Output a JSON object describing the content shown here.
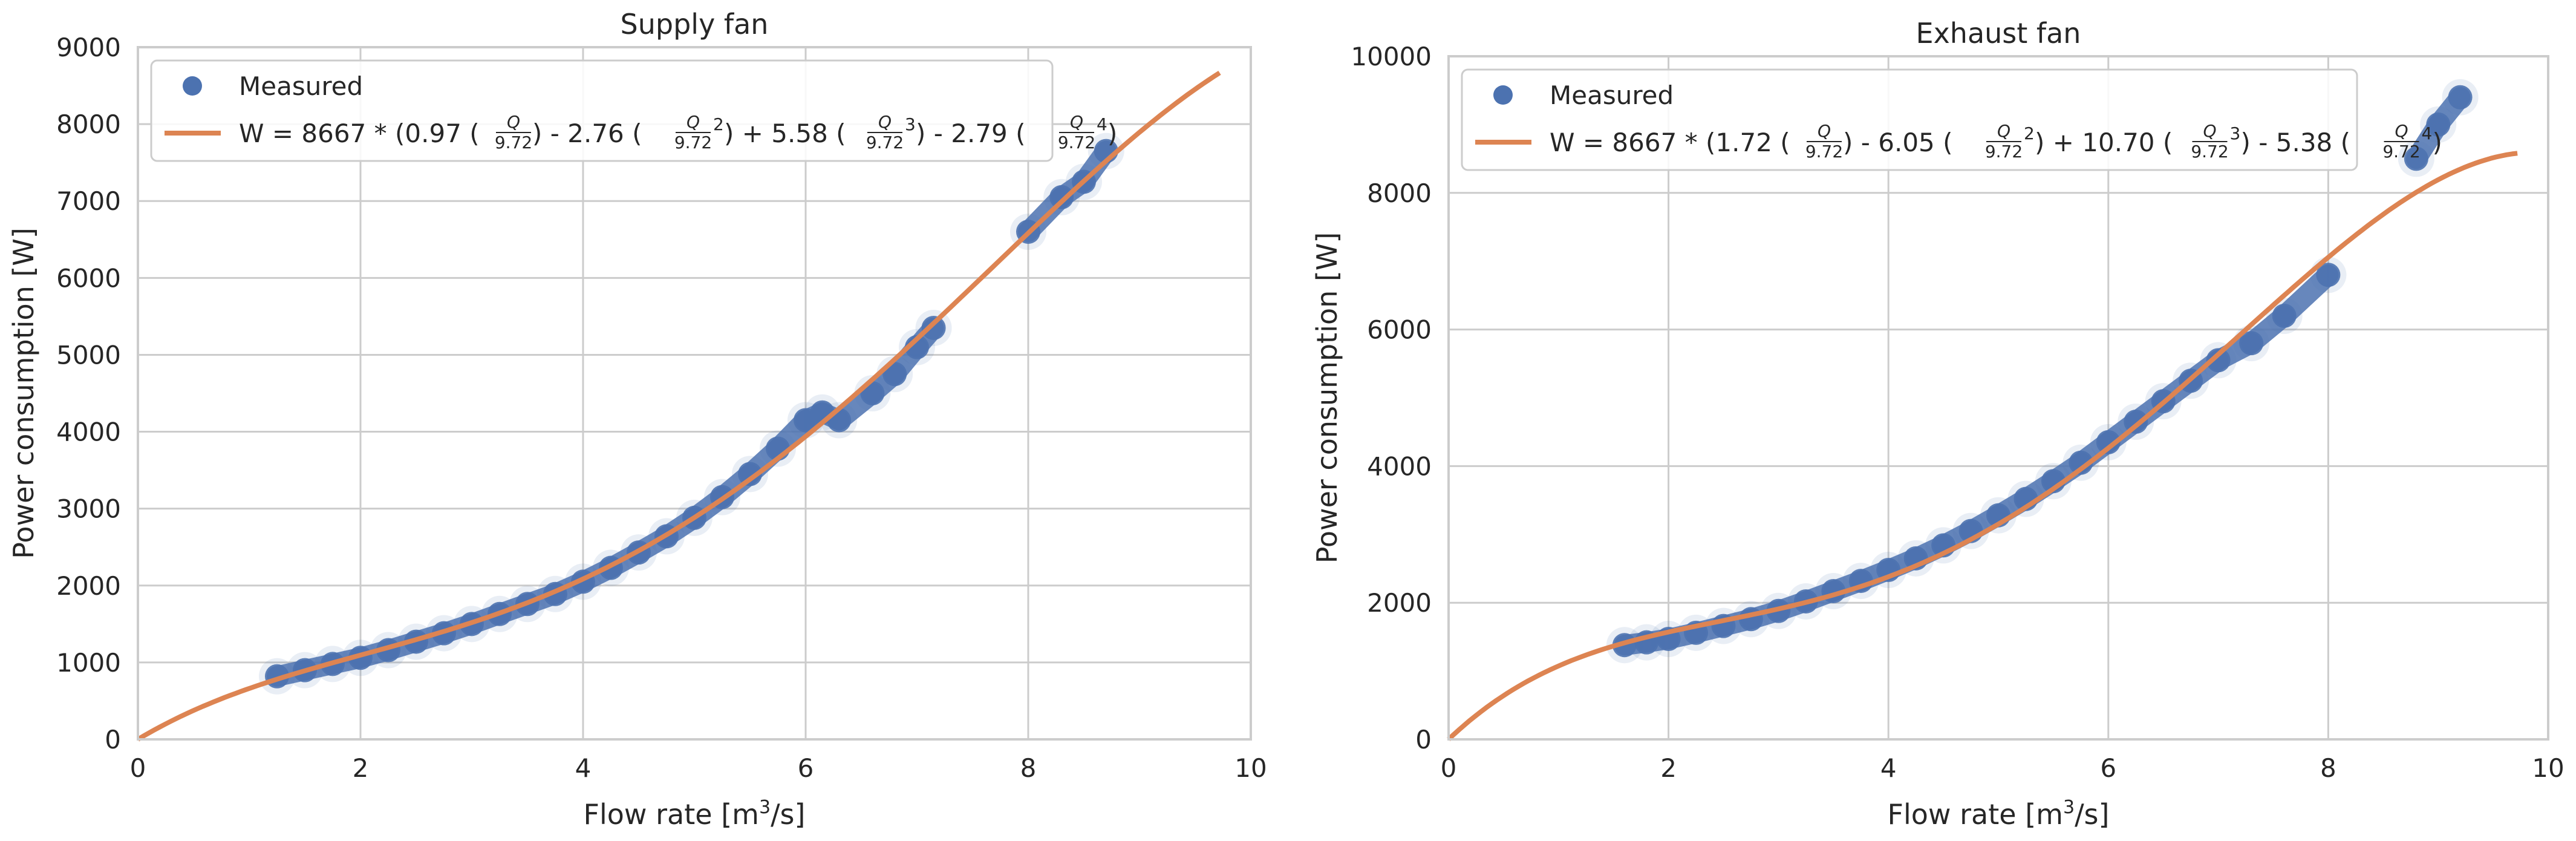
{
  "chart_data": [
    {
      "type": "scatter",
      "title": "Supply fan",
      "xlabel": "Flow rate [m³/s]",
      "xlabel_base": "Flow rate [m",
      "xlabel_sup": "3",
      "xlabel_tail": "/s]",
      "ylabel": "Power consumption [W]",
      "xlim": [
        0,
        10
      ],
      "ylim": [
        0,
        9000
      ],
      "xticks": [
        0,
        2,
        4,
        6,
        8,
        10
      ],
      "yticks": [
        0,
        1000,
        2000,
        3000,
        4000,
        5000,
        6000,
        7000,
        8000,
        9000
      ],
      "grid": true,
      "legend_position": "top-left",
      "series": [
        {
          "name": "Measured",
          "kind": "scatter",
          "color": "#4C72B0",
          "x": [
            1.25,
            1.5,
            1.75,
            2.0,
            2.25,
            2.5,
            2.75,
            3.0,
            3.25,
            3.5,
            3.75,
            4.0,
            4.25,
            4.5,
            4.75,
            5.0,
            5.25,
            5.5,
            5.75,
            6.0,
            6.15,
            6.3,
            6.6,
            6.8,
            7.0,
            7.15,
            8.0,
            8.3,
            8.5,
            8.7
          ],
          "y": [
            820,
            900,
            980,
            1060,
            1160,
            1270,
            1380,
            1500,
            1630,
            1760,
            1890,
            2050,
            2230,
            2430,
            2640,
            2880,
            3150,
            3450,
            3780,
            4150,
            4250,
            4150,
            4500,
            4750,
            5100,
            5350,
            6600,
            7050,
            7250,
            7650
          ]
        },
        {
          "name": "W = 8667 * (0.97 (Q/9.72) - 2.76 (Q/9.72)^2 + 5.58 (Q/9.72)^3 - 2.79 (Q/9.72)^4)",
          "kind": "fit",
          "color": "#DD8452",
          "coefficients": [
            0.97,
            -2.76,
            5.58,
            -2.79
          ],
          "scale": 8667,
          "q_ref": 9.72,
          "x_range": [
            0,
            9.72
          ]
        }
      ],
      "legend": {
        "measured": "Measured",
        "fit_prefix": "W = 8667 * (0.97 (",
        "sep1": ") - 2.76 (",
        "sep2": ") + 5.58 (",
        "sep3": ") - 2.79 (",
        "suffix": ")",
        "frac_num": "Q",
        "frac_den": "9.72",
        "pow2": "2",
        "pow3": "3",
        "pow4": "4"
      }
    },
    {
      "type": "scatter",
      "title": "Exhaust fan",
      "xlabel": "Flow rate [m³/s]",
      "xlabel_base": "Flow rate [m",
      "xlabel_sup": "3",
      "xlabel_tail": "/s]",
      "ylabel": "Power consumption [W]",
      "xlim": [
        0,
        10
      ],
      "ylim": [
        0,
        10000
      ],
      "xticks": [
        0,
        2,
        4,
        6,
        8,
        10
      ],
      "yticks": [
        0,
        2000,
        4000,
        6000,
        8000,
        10000
      ],
      "grid": true,
      "legend_position": "top-left",
      "series": [
        {
          "name": "Measured",
          "kind": "scatter",
          "color": "#4C72B0",
          "x": [
            1.6,
            1.8,
            2.0,
            2.25,
            2.5,
            2.75,
            3.0,
            3.25,
            3.5,
            3.75,
            4.0,
            4.25,
            4.5,
            4.75,
            5.0,
            5.25,
            5.5,
            5.75,
            6.0,
            6.25,
            6.5,
            6.75,
            7.0,
            7.3,
            7.6,
            8.0,
            8.8,
            9.0,
            9.2
          ],
          "y": [
            1380,
            1420,
            1470,
            1560,
            1660,
            1760,
            1880,
            2020,
            2170,
            2320,
            2480,
            2650,
            2840,
            3050,
            3280,
            3520,
            3780,
            4050,
            4350,
            4650,
            4950,
            5250,
            5550,
            5800,
            6200,
            6800,
            8500,
            9000,
            9400
          ]
        },
        {
          "name": "W = 8667 * (1.72 (Q/9.72) - 6.05 (Q/9.72)^2 + 10.70 (Q/9.72)^3 - 5.38 (Q/9.72)^4)",
          "kind": "fit",
          "color": "#DD8452",
          "coefficients": [
            1.72,
            -6.05,
            10.7,
            -5.38
          ],
          "scale": 8667,
          "q_ref": 9.72,
          "x_range": [
            0,
            9.72
          ]
        }
      ],
      "legend": {
        "measured": "Measured",
        "fit_prefix": "W = 8667 * (1.72 (",
        "sep1": ") - 6.05 (",
        "sep2": ") + 10.70 (",
        "sep3": ") - 5.38 (",
        "suffix": ")",
        "frac_num": "Q",
        "frac_den": "9.72",
        "pow2": "2",
        "pow3": "3",
        "pow4": "4"
      }
    }
  ]
}
